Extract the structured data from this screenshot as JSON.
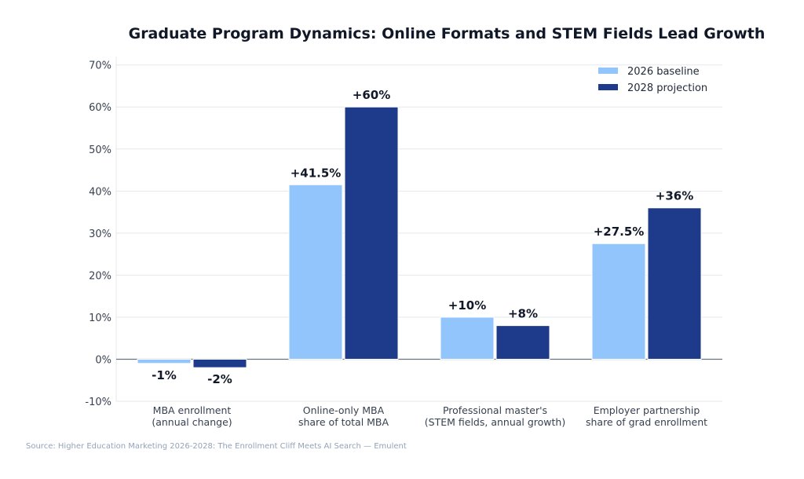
{
  "chart_data": {
    "type": "bar",
    "title": "Graduate Program Dynamics: Online Formats and STEM Fields Lead Growth",
    "xlabel": "",
    "ylabel": "",
    "categories": [
      [
        "MBA enrollment",
        "(annual change)"
      ],
      [
        "Online-only MBA",
        "share of total MBA"
      ],
      [
        "Professional master's",
        "(STEM fields, annual growth)"
      ],
      [
        "Employer partnership",
        "share of grad enrollment"
      ]
    ],
    "series": [
      {
        "name": "2026 baseline",
        "color": "#93c5fd",
        "values": [
          -1,
          41.5,
          10,
          27.5
        ],
        "labels": [
          "-1%",
          "+41.5%",
          "+10%",
          "+27.5%"
        ]
      },
      {
        "name": "2028 projection",
        "color": "#1e3a8a",
        "values": [
          -2,
          60,
          8,
          36
        ],
        "labels": [
          "-2%",
          "+60%",
          "+8%",
          "+36%"
        ]
      }
    ],
    "ylim": [
      -10,
      72
    ],
    "yticks": [
      -10,
      0,
      10,
      20,
      30,
      40,
      50,
      60,
      70
    ],
    "ytick_labels": [
      "-10%",
      "0%",
      "10%",
      "20%",
      "30%",
      "40%",
      "50%",
      "60%",
      "70%"
    ],
    "grid": true,
    "legend": "top-right",
    "source": "Source: Higher Education Marketing 2026-2028: The Enrollment Cliff Meets AI Search — Emulent"
  }
}
